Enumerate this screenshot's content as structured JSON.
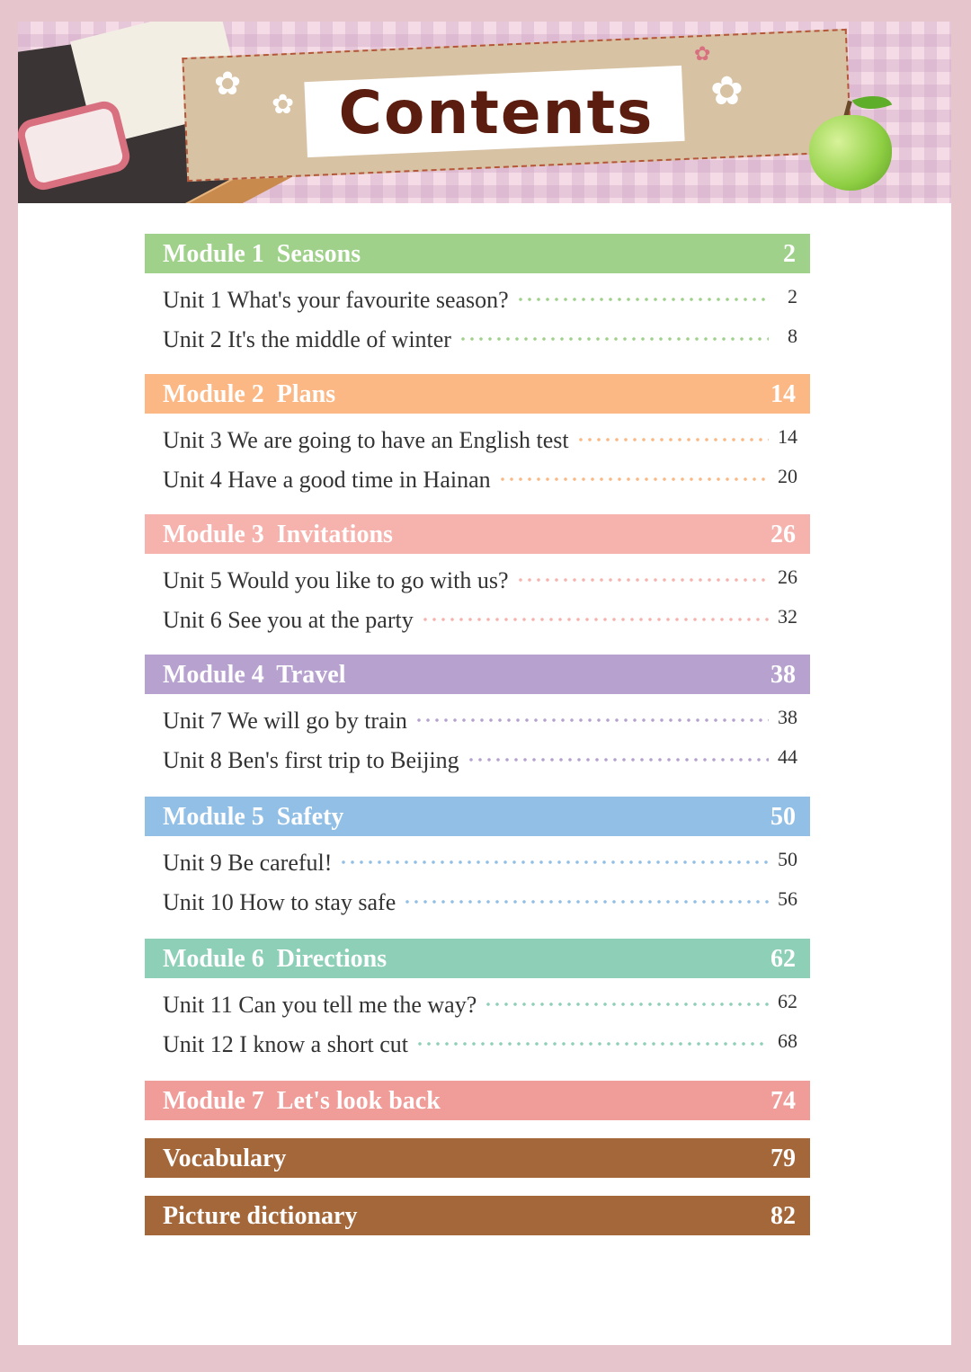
{
  "header": {
    "title": "Contents"
  },
  "colors": {
    "module1": "#9fd18a",
    "module2": "#fbb885",
    "module3": "#f6b3ae",
    "module4": "#b7a2cf",
    "module5": "#92bfe6",
    "module6": "#8ecfb7",
    "module7": "#f09c98",
    "appendix": "#a4673a"
  },
  "modules": [
    {
      "label": "Module 1  Seasons",
      "page": "2",
      "units": [
        {
          "label": "Unit 1 What's your favourite season?",
          "page": "2"
        },
        {
          "label": "Unit 2 It's the middle of winter",
          "page": "8"
        }
      ]
    },
    {
      "label": "Module 2  Plans",
      "page": "14",
      "units": [
        {
          "label": "Unit 3 We are going to have an English test",
          "page": "14"
        },
        {
          "label": "Unit 4 Have a good time in Hainan",
          "page": "20"
        }
      ]
    },
    {
      "label": "Module 3  Invitations",
      "page": "26",
      "units": [
        {
          "label": "Unit 5 Would you like to go with us?",
          "page": "26"
        },
        {
          "label": "Unit 6 See you at the party",
          "page": "32"
        }
      ]
    },
    {
      "label": "Module 4  Travel",
      "page": "38",
      "units": [
        {
          "label": "Unit 7 We will go by train",
          "page": "38"
        },
        {
          "label": "Unit 8 Ben's first trip to Beijing",
          "page": "44"
        }
      ]
    },
    {
      "label": "Module 5  Safety",
      "page": "50",
      "units": [
        {
          "label": "Unit 9 Be careful!",
          "page": "50"
        },
        {
          "label": "Unit 10 How to stay safe",
          "page": "56"
        }
      ]
    },
    {
      "label": "Module 6  Directions",
      "page": "62",
      "units": [
        {
          "label": "Unit 11 Can you tell me the way?",
          "page": "62"
        },
        {
          "label": "Unit 12 I know a short cut",
          "page": "68"
        }
      ]
    },
    {
      "label": "Module 7  Let's look back",
      "page": "74",
      "units": []
    }
  ],
  "appendix": [
    {
      "label": "Vocabulary",
      "page": "79"
    },
    {
      "label": "Picture dictionary",
      "page": "82"
    }
  ]
}
